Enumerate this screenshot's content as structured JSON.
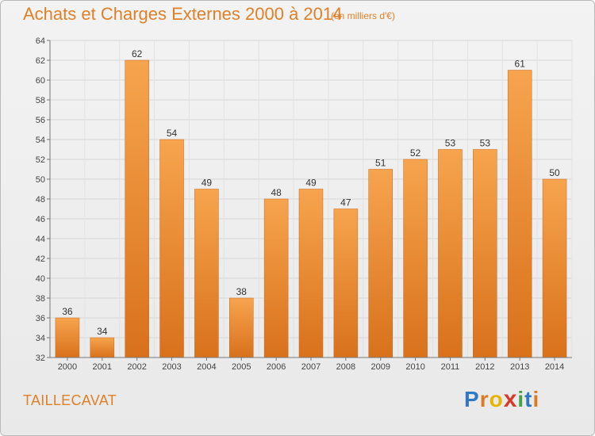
{
  "header": {
    "title": "Achats et Charges Externes 2000 à 2014",
    "subtitle": "(en milliers d'€)"
  },
  "footer": {
    "commune": "TAILLECAVAT",
    "logo_text": "Proxiti"
  },
  "colors": {
    "bar_top": "#f7a44e",
    "bar_bottom": "#d9711b",
    "title": "#e0802a",
    "grid": "#d6d6d6"
  },
  "chart_data": {
    "type": "bar",
    "title": "Achats et Charges Externes 2000 à 2014",
    "subtitle": "(en milliers d'€)",
    "categories": [
      "2000",
      "2001",
      "2002",
      "2003",
      "2004",
      "2005",
      "2006",
      "2007",
      "2008",
      "2009",
      "2010",
      "2011",
      "2012",
      "2013",
      "2014"
    ],
    "values": [
      36,
      34,
      62,
      54,
      49,
      38,
      48,
      49,
      47,
      51,
      52,
      53,
      53,
      61,
      50
    ],
    "ylim": [
      32,
      64
    ],
    "yticks": [
      32,
      34,
      36,
      38,
      40,
      42,
      44,
      46,
      48,
      50,
      52,
      54,
      56,
      58,
      60,
      62,
      64
    ],
    "grid": true,
    "xlabel": "",
    "ylabel": ""
  }
}
